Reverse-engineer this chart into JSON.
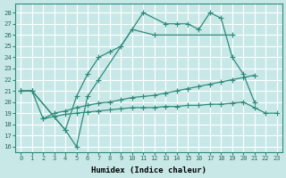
{
  "bg_color": "#c8e8e8",
  "grid_color": "#ffffff",
  "line_color": "#2e8b7a",
  "xlabel": "Humidex (Indice chaleur)",
  "xlim": [
    -0.5,
    23.5
  ],
  "ylim": [
    15.5,
    28.8
  ],
  "yticks": [
    16,
    17,
    18,
    19,
    20,
    21,
    22,
    23,
    24,
    25,
    26,
    27,
    28
  ],
  "xticks": [
    0,
    1,
    2,
    3,
    4,
    5,
    6,
    7,
    8,
    9,
    10,
    11,
    12,
    13,
    14,
    15,
    16,
    17,
    18,
    19,
    20,
    21,
    22,
    23
  ],
  "s1x": [
    0,
    1,
    4,
    5,
    6,
    7,
    11,
    13,
    14,
    15,
    16,
    17,
    18,
    19,
    20,
    21
  ],
  "s1y": [
    21,
    21,
    17.5,
    16,
    20.5,
    22,
    28,
    27,
    27,
    27,
    26.5,
    28,
    27.5,
    24,
    22.5,
    20
  ],
  "s2x": [
    0,
    1,
    4,
    5,
    6,
    7,
    8,
    9,
    10,
    12,
    19
  ],
  "s2y": [
    21,
    21,
    17.5,
    20.5,
    22.5,
    24,
    24.5,
    25,
    26.5,
    26,
    26
  ],
  "s3x": [
    2,
    3,
    4,
    5,
    6,
    7,
    8,
    9,
    10,
    11,
    12,
    13,
    14,
    15,
    16,
    17,
    18,
    19,
    20,
    21
  ],
  "s3y": [
    18.5,
    19,
    19.2,
    19.5,
    19.7,
    19.9,
    20.0,
    20.2,
    20.4,
    20.5,
    20.6,
    20.8,
    21.0,
    21.2,
    21.4,
    21.6,
    21.8,
    22.0,
    22.2,
    22.4
  ],
  "s4x": [
    0,
    1,
    2,
    3,
    4,
    5,
    6,
    7,
    8,
    9,
    10,
    11,
    12,
    13,
    14,
    15,
    16,
    17,
    18,
    19,
    20,
    21,
    22,
    23
  ],
  "s4y": [
    21,
    21,
    18.5,
    18.7,
    18.9,
    19.0,
    19.1,
    19.2,
    19.3,
    19.4,
    19.5,
    19.5,
    19.5,
    19.6,
    19.6,
    19.7,
    19.7,
    19.8,
    19.8,
    19.9,
    20.0,
    19.5,
    19.0,
    19.0
  ]
}
